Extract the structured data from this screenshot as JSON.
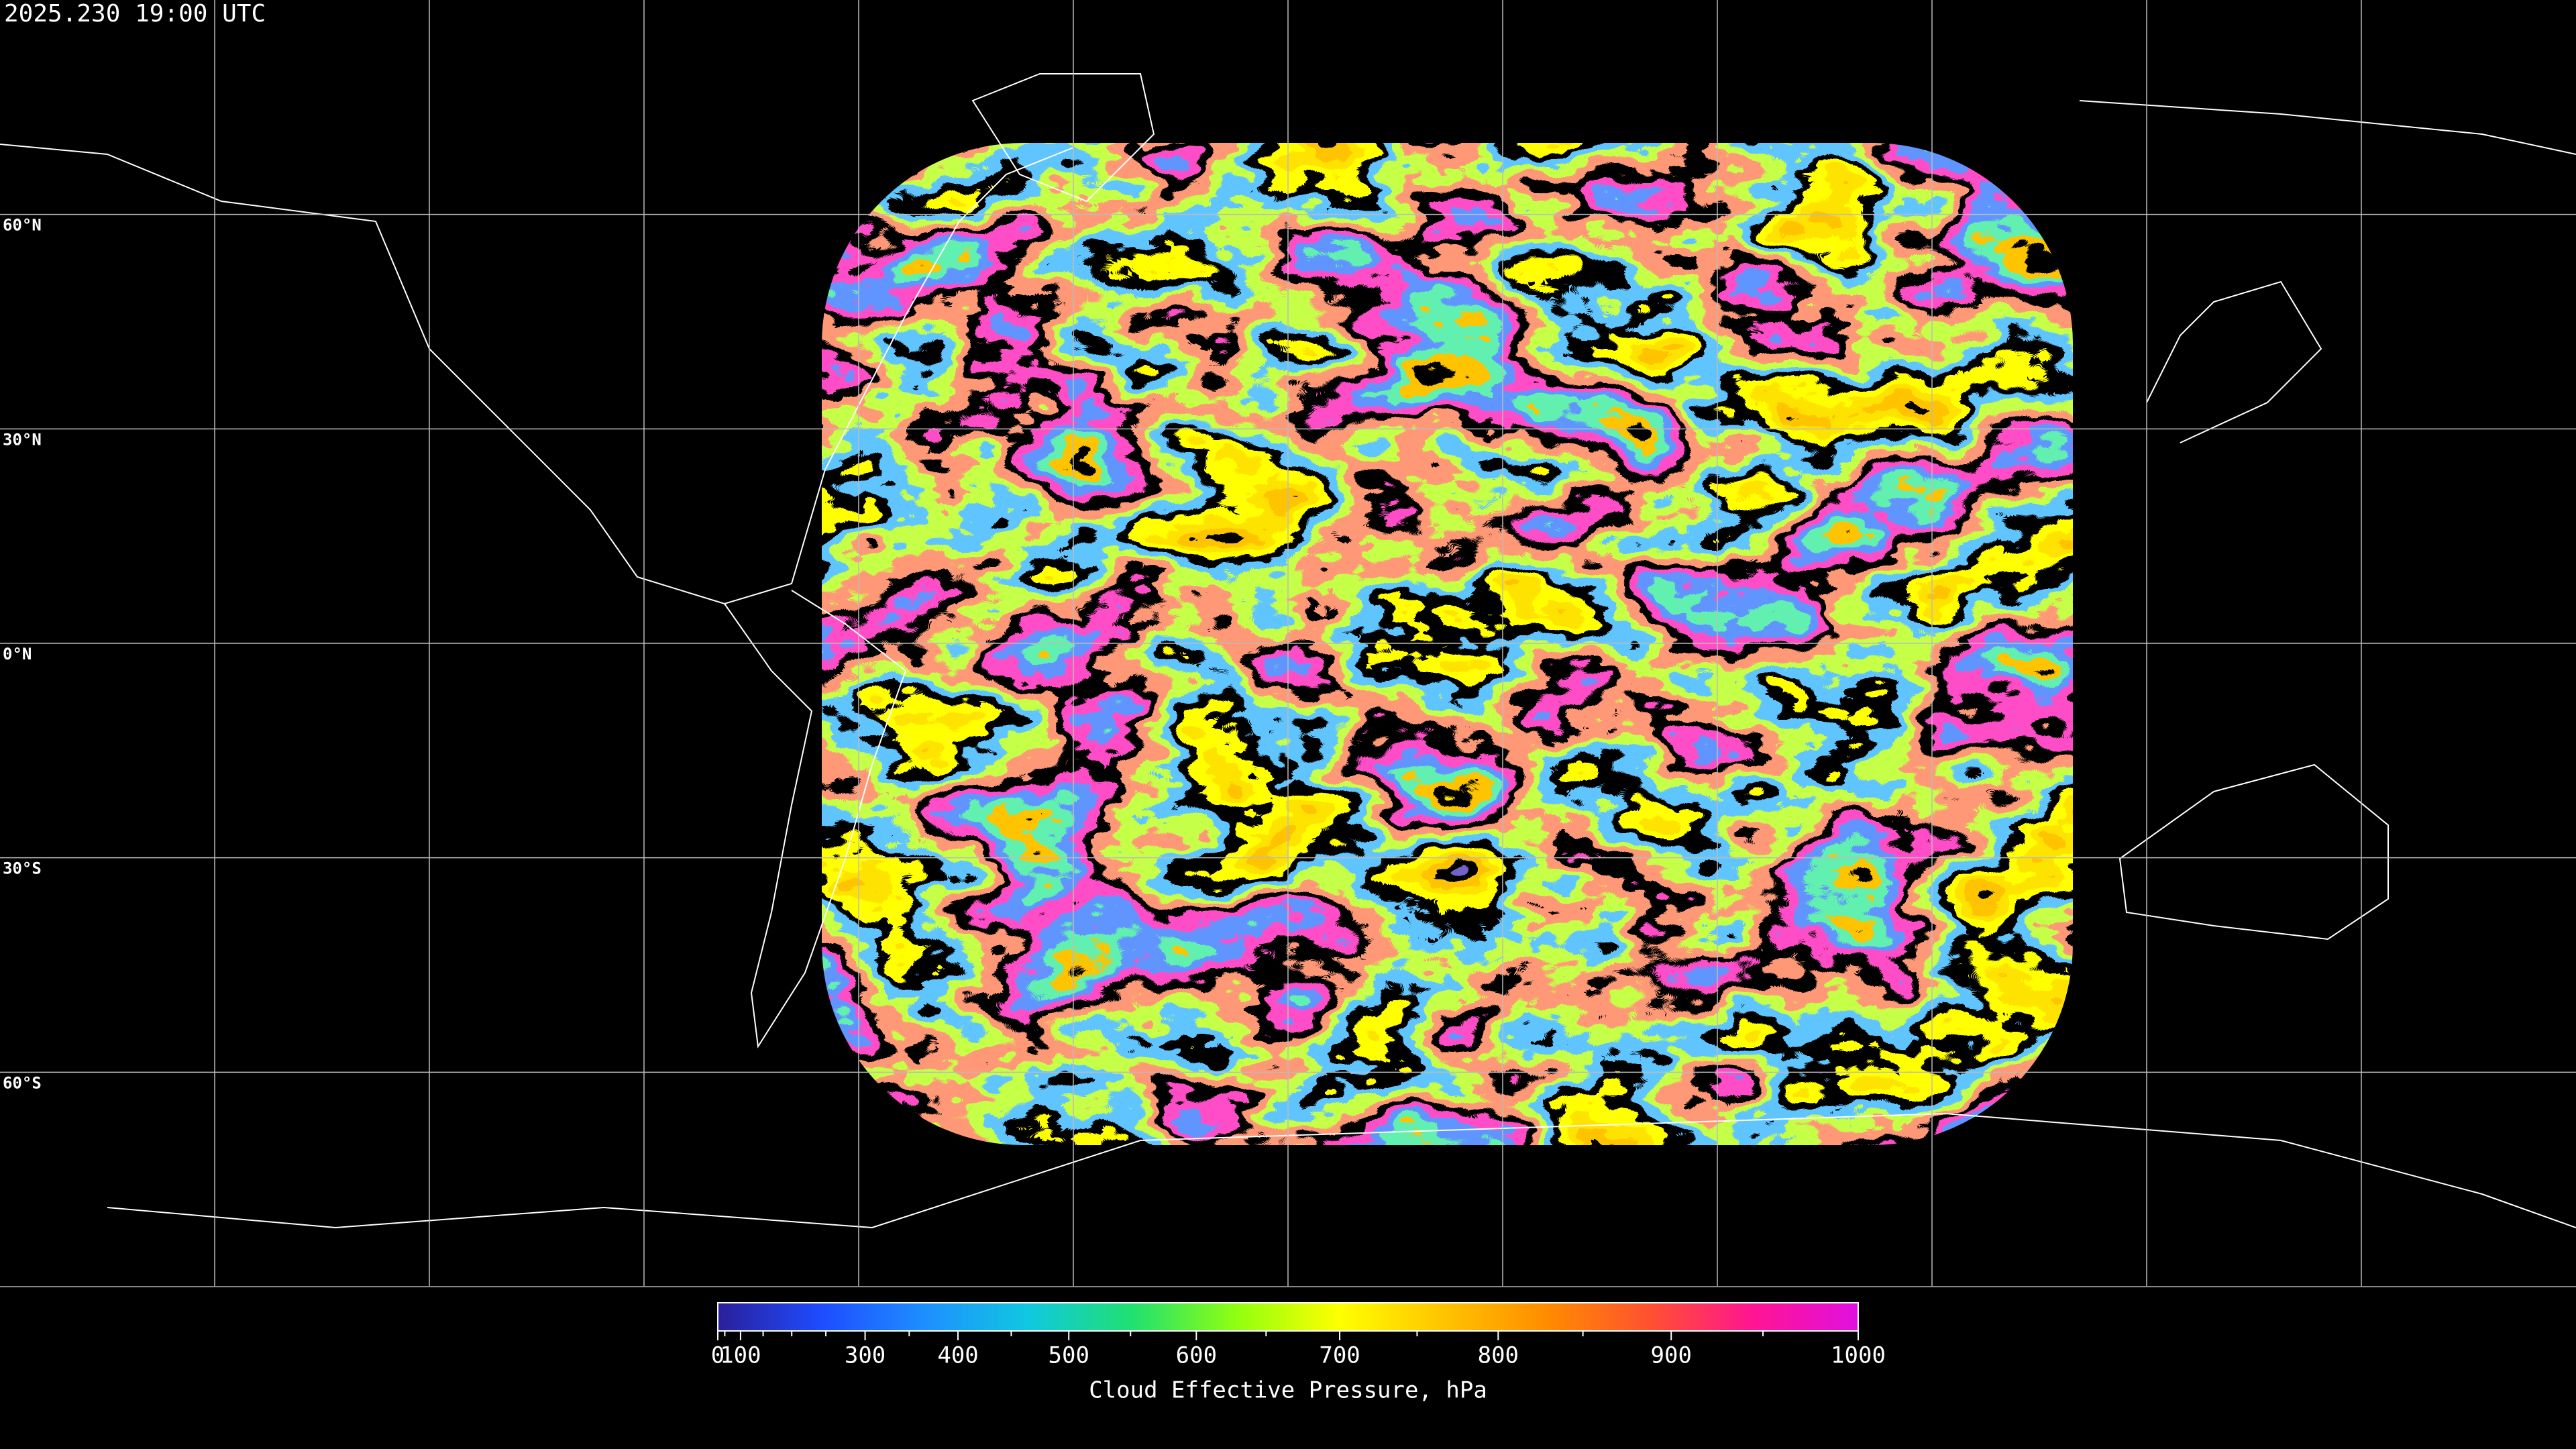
{
  "timestamp": "2025.230 19:00 UTC",
  "map": {
    "lonlim": [
      -180,
      180
    ],
    "latlim": [
      -90,
      90
    ],
    "meridians": [
      -150,
      -120,
      -90,
      -60,
      -30,
      0,
      30,
      60,
      90,
      120,
      150
    ],
    "parallels": [
      {
        "value": 60,
        "label": "60°N"
      },
      {
        "value": 30,
        "label": "30°N"
      },
      {
        "value": 0,
        "label": "0°N"
      },
      {
        "value": -30,
        "label": "30°S"
      },
      {
        "value": -60,
        "label": "60°S"
      }
    ]
  },
  "colorbar": {
    "label": "Cloud Effective Pressure, hPa",
    "lim": [
      0,
      1000
    ],
    "scale": "power",
    "exponent": 1.7,
    "ticks": [
      0,
      100,
      300,
      400,
      500,
      600,
      700,
      800,
      900,
      1000
    ],
    "minor_ticks": [
      50,
      150,
      200,
      250,
      350,
      450,
      550,
      650,
      750,
      850,
      950
    ],
    "colormap": [
      "#2a1f9a",
      "#1e4cff",
      "#1e8fff",
      "#10c8e0",
      "#20e070",
      "#90ff10",
      "#ffff00",
      "#ffc400",
      "#ff8c00",
      "#ff5030",
      "#ff1493",
      "#e010e0"
    ]
  }
}
